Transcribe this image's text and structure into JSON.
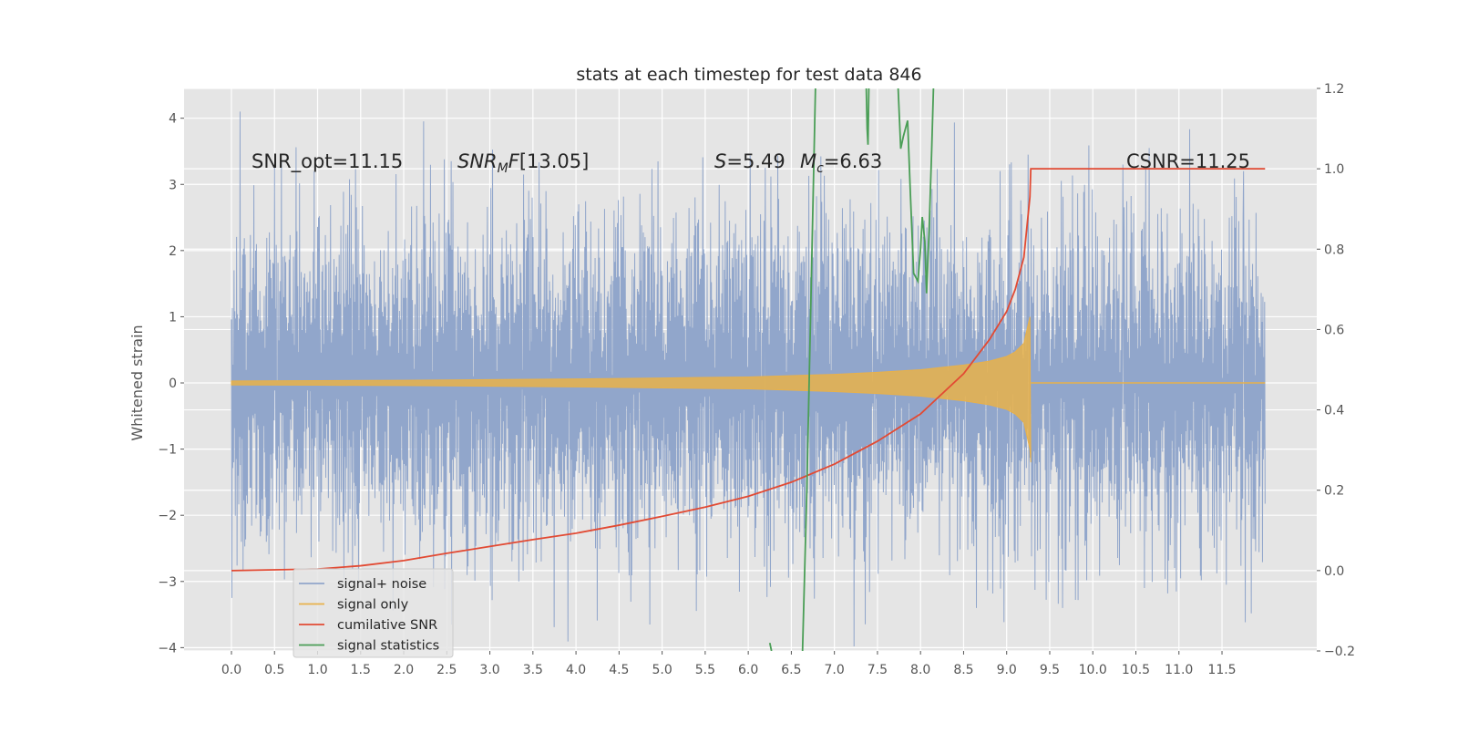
{
  "chart_data": {
    "type": "line",
    "title": "stats at each timestep for test data 846",
    "ylabel": "Whitened strain",
    "xlim": [
      -0.55,
      12.6
    ],
    "ylim": [
      -4.05,
      4.45
    ],
    "y2lim": [
      -0.2,
      1.2
    ],
    "x_ticks": [
      0.0,
      0.5,
      1.0,
      1.5,
      2.0,
      2.5,
      3.0,
      3.5,
      4.0,
      4.5,
      5.0,
      5.5,
      6.0,
      6.5,
      7.0,
      7.5,
      8.0,
      8.5,
      9.0,
      9.5,
      10.0,
      10.5,
      11.0,
      11.5
    ],
    "x_tick_labels": [
      "0.0",
      "0.5",
      "1.0",
      "1.5",
      "2.0",
      "2.5",
      "3.0",
      "3.5",
      "4.0",
      "4.5",
      "5.0",
      "5.5",
      "6.0",
      "6.5",
      "7.0",
      "7.5",
      "8.0",
      "8.5",
      "9.0",
      "9.5",
      "10.0",
      "10.5",
      "11.0",
      "11.5"
    ],
    "y_ticks": [
      4,
      3,
      2,
      1,
      0,
      -1,
      -2,
      -3,
      -4
    ],
    "y_tick_labels": [
      "4",
      "3",
      "2",
      "1",
      "0",
      "−1",
      "−2",
      "−3",
      "−4"
    ],
    "y2_ticks": [
      1.2,
      1.0,
      0.8,
      0.6,
      0.4,
      0.2,
      0.0,
      -0.2
    ],
    "y2_tick_labels": [
      "1.2",
      "1.0",
      "0.8",
      "0.6",
      "0.4",
      "0.2",
      "0.0",
      "−0.2"
    ],
    "grid": true,
    "legend_position": "lower-left",
    "annotations": {
      "snr_opt": "SNR_opt=11.15",
      "snr_mf": "[13.05]",
      "s": "=5.49",
      "mc": "=6.63",
      "csnr": "CSNR=11.25"
    },
    "series": [
      {
        "name": "signal+ noise",
        "color": "#91a6cb",
        "axis": "left",
        "noise_amplitude": 1.75,
        "x_range": [
          0.0,
          12.0
        ],
        "spike_highs": [
          [
            0.1,
            4.1
          ],
          [
            2.55,
            3.35
          ],
          [
            6.2,
            3.25
          ],
          [
            9.25,
            3.45
          ],
          [
            10.35,
            3.3
          ],
          [
            11.75,
            3.2
          ]
        ],
        "spike_lows": [
          [
            0.0,
            -3.25
          ],
          [
            2.55,
            -3.65
          ],
          [
            4.85,
            -3.65
          ],
          [
            8.65,
            -3.4
          ],
          [
            9.65,
            -3.4
          ],
          [
            10.6,
            -3.1
          ],
          [
            11.55,
            -3.05
          ]
        ]
      },
      {
        "name": "signal only",
        "color": "#e8b14a",
        "axis": "left",
        "x": [
          0.0,
          1.0,
          2.0,
          3.0,
          4.0,
          5.0,
          6.0,
          7.0,
          7.5,
          8.0,
          8.5,
          8.8,
          9.0,
          9.1,
          9.2,
          9.27
        ],
        "envelope": [
          0.03,
          0.035,
          0.04,
          0.05,
          0.06,
          0.075,
          0.09,
          0.13,
          0.16,
          0.2,
          0.27,
          0.33,
          0.4,
          0.47,
          0.6,
          1.0
        ],
        "end_x": 9.28,
        "end_min": -1.2
      },
      {
        "name": "cumilative SNR",
        "color": "#e24a33",
        "axis": "right",
        "x": [
          0.0,
          1.0,
          1.5,
          2.0,
          2.5,
          3.0,
          3.5,
          4.0,
          4.5,
          5.0,
          5.5,
          6.0,
          6.5,
          7.0,
          7.5,
          8.0,
          8.5,
          8.8,
          9.0,
          9.1,
          9.2,
          9.27,
          9.28,
          12.0
        ],
        "values": [
          0.0,
          0.004,
          0.012,
          0.025,
          0.043,
          0.06,
          0.077,
          0.093,
          0.113,
          0.135,
          0.158,
          0.185,
          0.22,
          0.265,
          0.322,
          0.39,
          0.49,
          0.575,
          0.645,
          0.7,
          0.78,
          0.93,
          1.0,
          1.0
        ]
      },
      {
        "name": "signal statistics",
        "color": "#348abd",
        "draw_color": "#4a9e56",
        "axis": "right",
        "segments": [
          [
            [
              6.25,
              -0.18
            ],
            [
              6.27,
              -0.2
            ]
          ],
          [
            [
              6.63,
              -0.2
            ],
            [
              6.68,
              0.2
            ],
            [
              6.73,
              0.7
            ],
            [
              6.78,
              1.2
            ]
          ],
          [
            [
              7.37,
              1.2
            ],
            [
              7.38,
              1.1
            ],
            [
              7.39,
              1.06
            ],
            [
              7.4,
              1.2
            ]
          ],
          [
            [
              7.74,
              1.2
            ],
            [
              7.77,
              1.05
            ],
            [
              7.8,
              1.08
            ],
            [
              7.85,
              1.12
            ],
            [
              7.88,
              0.95
            ],
            [
              7.92,
              0.74
            ],
            [
              7.97,
              0.72
            ],
            [
              8.0,
              0.8
            ],
            [
              8.02,
              0.88
            ],
            [
              8.05,
              0.82
            ],
            [
              8.07,
              0.69
            ],
            [
              8.1,
              0.85
            ],
            [
              8.13,
              1.05
            ],
            [
              8.15,
              1.2
            ]
          ]
        ]
      }
    ]
  }
}
